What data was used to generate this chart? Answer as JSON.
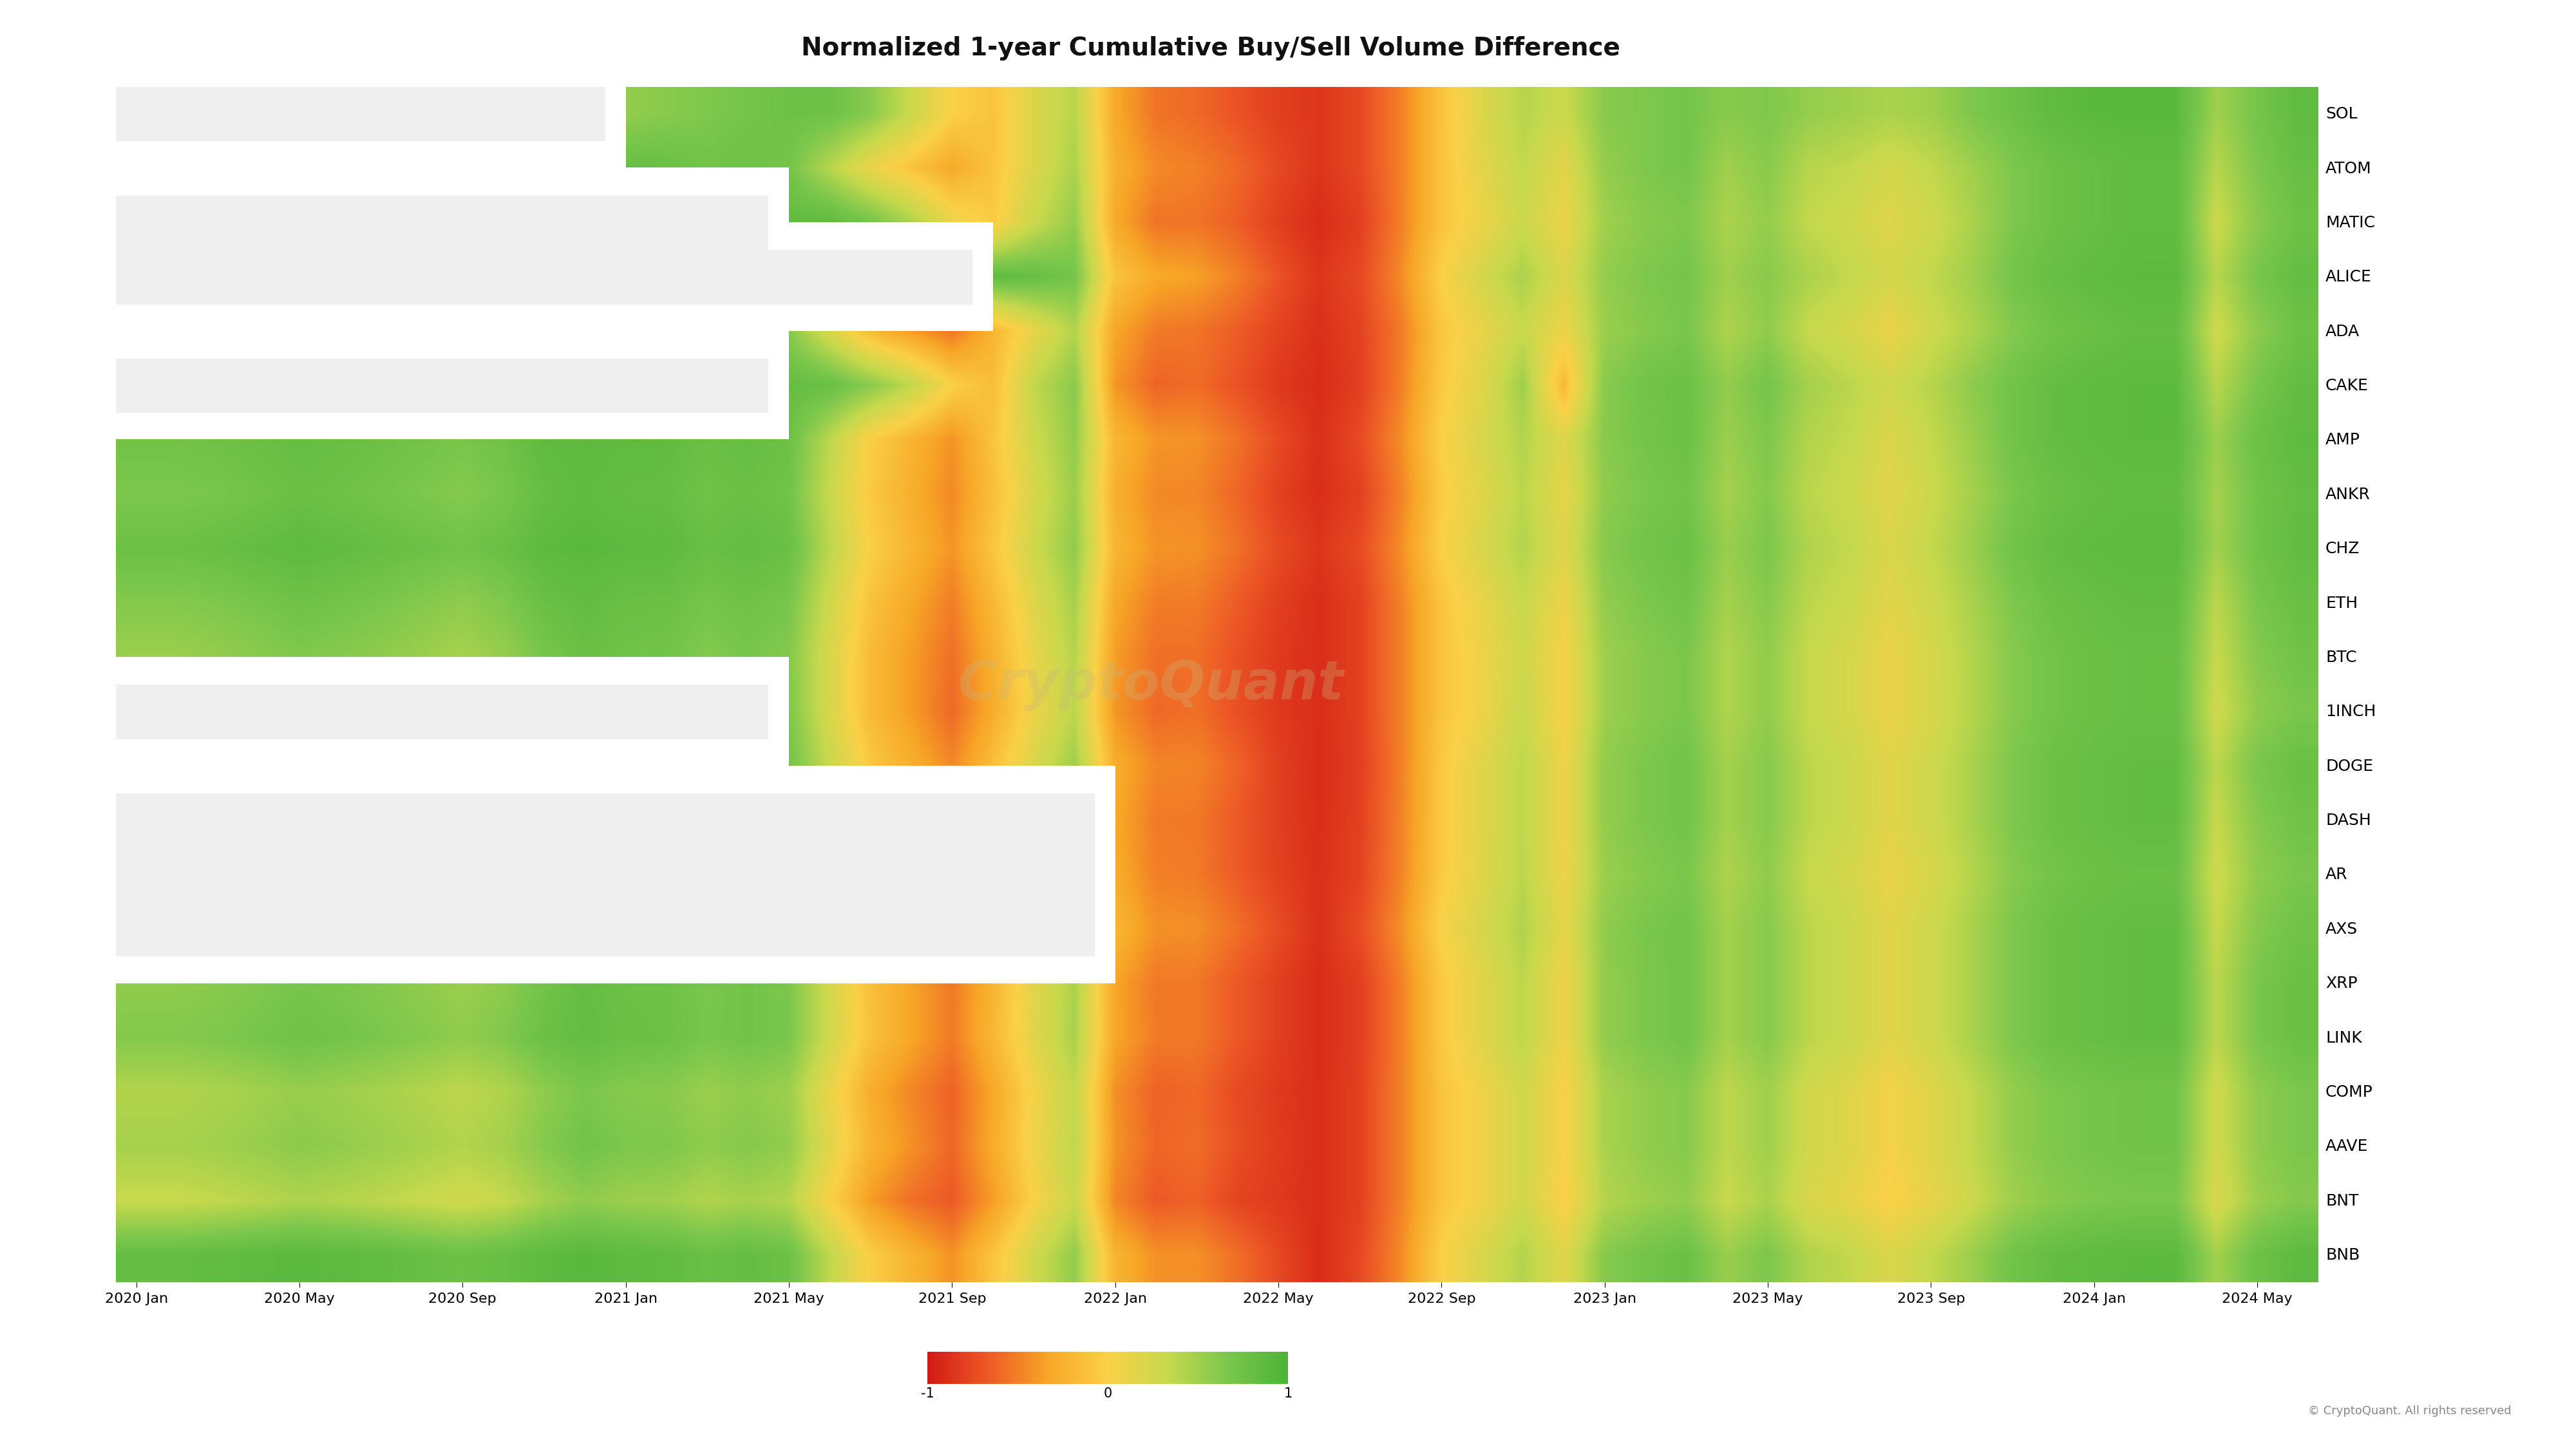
{
  "title": "Normalized 1-year Cumulative Buy/Sell Volume Difference",
  "title_fontsize": 28,
  "background_color": "#ffffff",
  "ytick_labels": [
    "SOL",
    "ATOM",
    "MATIC",
    "ALICE",
    "ADA",
    "CAKE",
    "AMP",
    "ANKR",
    "CHZ",
    "ETH",
    "BTC",
    "1INCH",
    "DOGE",
    "DASH",
    "AR",
    "AXS",
    "XRP",
    "LINK",
    "COMP",
    "AAVE",
    "BNT",
    "BNB"
  ],
  "xtick_labels": [
    "2020 Jan",
    "2020 May",
    "2020 Sep",
    "2021 Jan",
    "2021 May",
    "2021 Sep",
    "2022 Jan",
    "2022 May",
    "2022 Sep",
    "2023 Jan",
    "2023 May",
    "2023 Sep",
    "2024 Jan",
    "2024 May"
  ],
  "colorbar_label_min": "-1",
  "colorbar_label_mid": "0",
  "colorbar_label_max": "1",
  "watermark": "CryptoQuant",
  "footer_text": "© CryptoQuant. All rights reserved",
  "nan_color": "#efefef",
  "n_rows": 22,
  "n_cols": 54,
  "heatmap_data": [
    [
      null,
      null,
      null,
      null,
      null,
      null,
      null,
      null,
      null,
      null,
      null,
      null,
      0.55,
      0.6,
      0.65,
      0.7,
      0.75,
      0.75,
      0.6,
      0.3,
      0.0,
      -0.1,
      0.2,
      0.4,
      -0.3,
      -0.55,
      -0.6,
      -0.7,
      -0.8,
      -0.85,
      -0.75,
      -0.5,
      -0.1,
      0.2,
      0.4,
      0.3,
      0.6,
      0.65,
      0.7,
      0.6,
      0.65,
      0.55,
      0.5,
      0.45,
      0.5,
      0.65,
      0.75,
      0.85,
      0.9,
      0.9,
      0.9,
      0.5,
      0.7,
      0.85
    ],
    [
      0.7,
      0.7,
      0.72,
      0.75,
      0.78,
      0.76,
      0.74,
      0.72,
      0.7,
      0.74,
      0.8,
      0.85,
      0.8,
      0.78,
      0.72,
      0.75,
      0.7,
      0.4,
      0.1,
      -0.1,
      -0.3,
      -0.1,
      0.2,
      0.45,
      -0.25,
      -0.45,
      -0.5,
      -0.6,
      -0.75,
      -0.85,
      -0.75,
      -0.5,
      -0.1,
      0.15,
      0.35,
      0.15,
      0.55,
      0.65,
      0.7,
      0.5,
      0.6,
      0.4,
      0.35,
      0.25,
      0.35,
      0.5,
      0.65,
      0.75,
      0.8,
      0.85,
      0.85,
      0.4,
      0.65,
      0.8
    ],
    [
      null,
      null,
      null,
      null,
      null,
      null,
      null,
      null,
      null,
      null,
      null,
      null,
      null,
      null,
      null,
      null,
      0.85,
      0.85,
      0.7,
      0.45,
      0.1,
      -0.05,
      0.3,
      0.55,
      -0.3,
      -0.55,
      -0.55,
      -0.65,
      -0.8,
      -0.9,
      -0.8,
      -0.5,
      -0.1,
      0.1,
      0.3,
      0.1,
      0.5,
      0.6,
      0.65,
      0.45,
      0.55,
      0.35,
      0.28,
      0.18,
      0.28,
      0.45,
      0.65,
      0.75,
      0.8,
      0.85,
      0.85,
      0.3,
      0.6,
      0.75
    ],
    [
      null,
      null,
      null,
      null,
      null,
      null,
      null,
      null,
      null,
      null,
      null,
      null,
      null,
      null,
      null,
      null,
      null,
      null,
      null,
      null,
      null,
      0.85,
      0.8,
      0.7,
      -0.1,
      -0.3,
      -0.35,
      -0.5,
      -0.7,
      -0.85,
      -0.75,
      -0.45,
      0.0,
      0.25,
      0.45,
      0.2,
      0.55,
      0.65,
      0.7,
      0.5,
      0.6,
      0.45,
      0.35,
      0.25,
      0.35,
      0.5,
      0.7,
      0.8,
      0.85,
      0.88,
      0.88,
      0.4,
      0.68,
      0.82
    ],
    [
      0.55,
      0.57,
      0.6,
      0.65,
      0.72,
      0.7,
      0.67,
      0.63,
      0.6,
      0.66,
      0.78,
      0.85,
      0.78,
      0.76,
      0.68,
      0.72,
      0.62,
      0.22,
      -0.18,
      -0.38,
      -0.55,
      -0.22,
      0.12,
      0.42,
      -0.32,
      -0.52,
      -0.55,
      -0.65,
      -0.78,
      -0.88,
      -0.78,
      -0.52,
      -0.08,
      0.12,
      0.32,
      0.08,
      0.52,
      0.62,
      0.68,
      0.44,
      0.57,
      0.33,
      0.24,
      0.1,
      0.28,
      0.44,
      0.62,
      0.72,
      0.78,
      0.82,
      0.82,
      0.28,
      0.58,
      0.75
    ],
    [
      null,
      null,
      null,
      null,
      null,
      null,
      null,
      null,
      null,
      null,
      null,
      null,
      null,
      null,
      null,
      null,
      0.82,
      0.78,
      0.6,
      0.35,
      0.0,
      -0.15,
      0.35,
      0.6,
      -0.4,
      -0.62,
      -0.58,
      -0.7,
      -0.83,
      -0.9,
      -0.8,
      -0.5,
      -0.05,
      0.18,
      0.5,
      -0.18,
      0.6,
      0.72,
      0.76,
      0.56,
      0.7,
      0.48,
      0.38,
      0.28,
      0.4,
      0.58,
      0.72,
      0.82,
      0.86,
      0.88,
      0.88,
      0.4,
      0.68,
      0.83
    ],
    [
      0.72,
      0.72,
      0.75,
      0.78,
      0.82,
      0.8,
      0.76,
      0.72,
      0.68,
      0.74,
      0.86,
      0.88,
      0.86,
      0.85,
      0.78,
      0.82,
      0.76,
      0.38,
      -0.02,
      -0.22,
      -0.42,
      -0.1,
      0.28,
      0.56,
      -0.2,
      -0.4,
      -0.42,
      -0.56,
      -0.74,
      -0.88,
      -0.74,
      -0.44,
      0.0,
      0.22,
      0.42,
      0.18,
      0.6,
      0.7,
      0.76,
      0.52,
      0.65,
      0.42,
      0.34,
      0.2,
      0.34,
      0.52,
      0.72,
      0.82,
      0.86,
      0.88,
      0.88,
      0.52,
      0.76,
      0.86
    ],
    [
      0.66,
      0.66,
      0.68,
      0.72,
      0.77,
      0.74,
      0.7,
      0.66,
      0.62,
      0.68,
      0.81,
      0.86,
      0.82,
      0.81,
      0.73,
      0.77,
      0.72,
      0.32,
      -0.06,
      -0.26,
      -0.46,
      -0.14,
      0.22,
      0.52,
      -0.26,
      -0.46,
      -0.47,
      -0.61,
      -0.79,
      -0.89,
      -0.79,
      -0.49,
      -0.04,
      0.18,
      0.38,
      0.13,
      0.57,
      0.67,
      0.72,
      0.48,
      0.62,
      0.38,
      0.3,
      0.16,
      0.3,
      0.48,
      0.67,
      0.77,
      0.82,
      0.84,
      0.84,
      0.48,
      0.72,
      0.82
    ],
    [
      0.76,
      0.76,
      0.79,
      0.83,
      0.87,
      0.84,
      0.8,
      0.76,
      0.72,
      0.78,
      0.88,
      0.9,
      0.88,
      0.87,
      0.79,
      0.83,
      0.78,
      0.38,
      -0.01,
      -0.21,
      -0.41,
      -0.09,
      0.28,
      0.57,
      -0.21,
      -0.41,
      -0.42,
      -0.56,
      -0.74,
      -0.85,
      -0.74,
      -0.44,
      0.0,
      0.22,
      0.42,
      0.18,
      0.61,
      0.71,
      0.77,
      0.53,
      0.66,
      0.43,
      0.35,
      0.21,
      0.34,
      0.52,
      0.72,
      0.82,
      0.86,
      0.88,
      0.88,
      0.49,
      0.73,
      0.84
    ],
    [
      0.62,
      0.62,
      0.65,
      0.69,
      0.74,
      0.71,
      0.67,
      0.62,
      0.57,
      0.64,
      0.78,
      0.83,
      0.78,
      0.77,
      0.69,
      0.74,
      0.68,
      0.28,
      -0.11,
      -0.31,
      -0.51,
      -0.19,
      0.17,
      0.47,
      -0.31,
      -0.51,
      -0.52,
      -0.66,
      -0.8,
      -0.89,
      -0.79,
      -0.49,
      -0.09,
      0.12,
      0.32,
      0.08,
      0.56,
      0.66,
      0.72,
      0.48,
      0.61,
      0.38,
      0.3,
      0.16,
      0.28,
      0.46,
      0.65,
      0.76,
      0.8,
      0.83,
      0.83,
      0.38,
      0.67,
      0.78
    ],
    [
      0.52,
      0.52,
      0.55,
      0.59,
      0.64,
      0.61,
      0.57,
      0.52,
      0.47,
      0.54,
      0.68,
      0.78,
      0.72,
      0.71,
      0.63,
      0.68,
      0.62,
      0.22,
      -0.17,
      -0.37,
      -0.57,
      -0.25,
      0.11,
      0.41,
      -0.37,
      -0.57,
      -0.57,
      -0.71,
      -0.83,
      -0.89,
      -0.79,
      -0.49,
      -0.09,
      0.08,
      0.28,
      0.03,
      0.51,
      0.61,
      0.67,
      0.43,
      0.56,
      0.33,
      0.24,
      0.1,
      0.24,
      0.42,
      0.61,
      0.72,
      0.77,
      0.79,
      0.79,
      0.33,
      0.62,
      0.73
    ],
    [
      null,
      null,
      null,
      null,
      null,
      null,
      null,
      null,
      null,
      null,
      null,
      null,
      null,
      null,
      null,
      null,
      0.65,
      0.22,
      -0.17,
      -0.37,
      -0.6,
      -0.28,
      0.08,
      0.38,
      -0.4,
      -0.6,
      -0.57,
      -0.71,
      -0.83,
      -0.89,
      -0.79,
      -0.49,
      -0.09,
      0.08,
      0.32,
      0.02,
      0.51,
      0.61,
      0.67,
      0.43,
      0.56,
      0.33,
      0.24,
      0.1,
      0.23,
      0.41,
      0.61,
      0.72,
      0.77,
      0.79,
      0.79,
      0.28,
      0.57,
      0.67
    ],
    [
      0.67,
      0.67,
      0.7,
      0.74,
      0.79,
      0.76,
      0.72,
      0.67,
      0.62,
      0.68,
      0.82,
      0.87,
      0.82,
      0.81,
      0.73,
      0.77,
      0.72,
      0.32,
      -0.06,
      -0.26,
      -0.46,
      -0.14,
      0.21,
      0.51,
      -0.27,
      -0.47,
      -0.48,
      -0.62,
      -0.8,
      -0.9,
      -0.8,
      -0.5,
      -0.06,
      0.17,
      0.37,
      0.07,
      0.56,
      0.66,
      0.72,
      0.48,
      0.61,
      0.38,
      0.3,
      0.16,
      0.28,
      0.46,
      0.65,
      0.76,
      0.8,
      0.83,
      0.83,
      0.38,
      0.67,
      0.78
    ],
    [
      null,
      null,
      null,
      null,
      null,
      null,
      null,
      null,
      null,
      null,
      null,
      null,
      null,
      null,
      null,
      null,
      null,
      null,
      null,
      null,
      null,
      null,
      null,
      null,
      -0.3,
      -0.52,
      -0.53,
      -0.67,
      -0.8,
      -0.89,
      -0.79,
      -0.49,
      -0.06,
      0.17,
      0.37,
      0.07,
      0.56,
      0.66,
      0.72,
      0.48,
      0.61,
      0.38,
      0.3,
      0.16,
      0.28,
      0.46,
      0.65,
      0.76,
      0.8,
      0.83,
      0.83,
      0.33,
      0.62,
      0.73
    ],
    [
      null,
      null,
      null,
      null,
      null,
      null,
      null,
      null,
      null,
      null,
      null,
      null,
      null,
      null,
      null,
      null,
      null,
      null,
      null,
      null,
      null,
      null,
      null,
      null,
      -0.28,
      -0.5,
      -0.52,
      -0.66,
      -0.79,
      -0.88,
      -0.78,
      -0.48,
      -0.05,
      0.18,
      0.38,
      0.08,
      0.52,
      0.62,
      0.67,
      0.44,
      0.57,
      0.33,
      0.25,
      0.11,
      0.23,
      0.41,
      0.61,
      0.71,
      0.76,
      0.78,
      0.78,
      0.28,
      0.57,
      0.67
    ],
    [
      null,
      null,
      null,
      null,
      null,
      null,
      null,
      null,
      null,
      null,
      null,
      null,
      null,
      null,
      null,
      null,
      null,
      null,
      null,
      null,
      null,
      null,
      null,
      null,
      -0.2,
      -0.42,
      -0.43,
      -0.57,
      -0.73,
      -0.88,
      -0.73,
      -0.43,
      0.02,
      0.23,
      0.43,
      0.13,
      0.57,
      0.67,
      0.72,
      0.48,
      0.61,
      0.38,
      0.3,
      0.16,
      0.28,
      0.46,
      0.65,
      0.76,
      0.8,
      0.83,
      0.83,
      0.33,
      0.62,
      0.73
    ],
    [
      0.57,
      0.57,
      0.6,
      0.64,
      0.69,
      0.66,
      0.62,
      0.57,
      0.52,
      0.58,
      0.72,
      0.82,
      0.76,
      0.75,
      0.67,
      0.72,
      0.66,
      0.26,
      -0.13,
      -0.33,
      -0.53,
      -0.21,
      0.15,
      0.45,
      -0.33,
      -0.53,
      -0.53,
      -0.67,
      -0.8,
      -0.9,
      -0.8,
      -0.5,
      -0.06,
      0.17,
      0.37,
      0.07,
      0.56,
      0.66,
      0.72,
      0.48,
      0.61,
      0.38,
      0.3,
      0.16,
      0.28,
      0.46,
      0.65,
      0.76,
      0.8,
      0.83,
      0.83,
      0.38,
      0.67,
      0.78
    ],
    [
      0.62,
      0.62,
      0.65,
      0.69,
      0.74,
      0.71,
      0.67,
      0.62,
      0.57,
      0.63,
      0.77,
      0.83,
      0.77,
      0.76,
      0.68,
      0.72,
      0.67,
      0.27,
      -0.12,
      -0.32,
      -0.52,
      -0.2,
      0.16,
      0.46,
      -0.32,
      -0.52,
      -0.53,
      -0.67,
      -0.8,
      -0.9,
      -0.8,
      -0.5,
      -0.06,
      0.17,
      0.37,
      0.07,
      0.56,
      0.66,
      0.72,
      0.48,
      0.61,
      0.38,
      0.3,
      0.16,
      0.28,
      0.46,
      0.65,
      0.76,
      0.8,
      0.83,
      0.83,
      0.38,
      0.67,
      0.78
    ],
    [
      0.42,
      0.42,
      0.45,
      0.49,
      0.54,
      0.51,
      0.47,
      0.42,
      0.37,
      0.43,
      0.57,
      0.67,
      0.61,
      0.6,
      0.52,
      0.57,
      0.51,
      0.11,
      -0.27,
      -0.47,
      -0.63,
      -0.31,
      0.05,
      0.35,
      -0.43,
      -0.63,
      -0.6,
      -0.74,
      -0.83,
      -0.89,
      -0.79,
      -0.49,
      -0.09,
      0.07,
      0.27,
      0.01,
      0.46,
      0.56,
      0.61,
      0.37,
      0.5,
      0.27,
      0.18,
      0.04,
      0.17,
      0.35,
      0.55,
      0.65,
      0.7,
      0.72,
      0.72,
      0.27,
      0.57,
      0.67
    ],
    [
      0.47,
      0.47,
      0.5,
      0.54,
      0.59,
      0.56,
      0.52,
      0.47,
      0.42,
      0.48,
      0.62,
      0.72,
      0.66,
      0.65,
      0.57,
      0.62,
      0.56,
      0.16,
      -0.22,
      -0.42,
      -0.61,
      -0.29,
      0.07,
      0.37,
      -0.41,
      -0.61,
      -0.58,
      -0.72,
      -0.82,
      -0.89,
      -0.79,
      -0.49,
      -0.09,
      0.07,
      0.27,
      0.01,
      0.46,
      0.56,
      0.61,
      0.37,
      0.5,
      0.27,
      0.18,
      0.04,
      0.17,
      0.35,
      0.55,
      0.65,
      0.7,
      0.72,
      0.72,
      0.27,
      0.57,
      0.67
    ],
    [
      0.32,
      0.32,
      0.35,
      0.39,
      0.44,
      0.41,
      0.37,
      0.32,
      0.27,
      0.33,
      0.47,
      0.57,
      0.51,
      0.5,
      0.42,
      0.47,
      0.41,
      0.01,
      -0.37,
      -0.57,
      -0.67,
      -0.37,
      0.01,
      0.31,
      -0.47,
      -0.67,
      -0.63,
      -0.77,
      -0.83,
      -0.89,
      -0.79,
      -0.49,
      -0.09,
      0.07,
      0.27,
      -0.01,
      0.41,
      0.51,
      0.56,
      0.32,
      0.45,
      0.22,
      0.13,
      -0.01,
      0.12,
      0.3,
      0.5,
      0.6,
      0.65,
      0.67,
      0.67,
      0.22,
      0.52,
      0.62
    ],
    [
      0.82,
      0.82,
      0.84,
      0.87,
      0.89,
      0.87,
      0.84,
      0.8,
      0.76,
      0.8,
      0.87,
      0.9,
      0.87,
      0.85,
      0.78,
      0.82,
      0.76,
      0.36,
      -0.02,
      -0.22,
      -0.42,
      -0.1,
      0.26,
      0.56,
      -0.22,
      -0.42,
      -0.43,
      -0.57,
      -0.75,
      -0.9,
      -0.75,
      -0.45,
      0.0,
      0.22,
      0.42,
      0.17,
      0.61,
      0.71,
      0.77,
      0.53,
      0.66,
      0.43,
      0.35,
      0.21,
      0.34,
      0.52,
      0.72,
      0.82,
      0.86,
      0.88,
      0.88,
      0.49,
      0.75,
      0.87
    ]
  ]
}
